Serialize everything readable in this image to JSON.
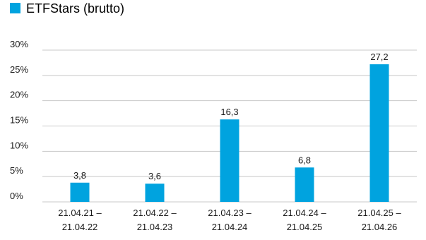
{
  "chart_data": {
    "type": "bar",
    "categories": [
      [
        "21.04.21 –",
        "21.04.22"
      ],
      [
        "21.04.22 –",
        "21.04.23"
      ],
      [
        "21.04.23 –",
        "21.04.24"
      ],
      [
        "21.04.24 –",
        "21.04.25"
      ],
      [
        "21.04.25 –",
        "21.04.26"
      ]
    ],
    "series": [
      {
        "name": "ETFStars (brutto)",
        "values": [
          3.8,
          3.6,
          16.3,
          6.8,
          27.2
        ],
        "labels": [
          "3,8",
          "3,6",
          "16,3",
          "6,8",
          "27,2"
        ],
        "color": "#00a3df"
      }
    ],
    "ylim": [
      0,
      30
    ],
    "yticks": [
      0,
      5,
      10,
      15,
      20,
      25,
      30
    ],
    "ytick_labels": [
      "0%",
      "5%",
      "10%",
      "15%",
      "20%",
      "25%",
      "30%"
    ],
    "grid": true,
    "legend_position": "top-left",
    "gridline_color": "#c8c8c8"
  }
}
